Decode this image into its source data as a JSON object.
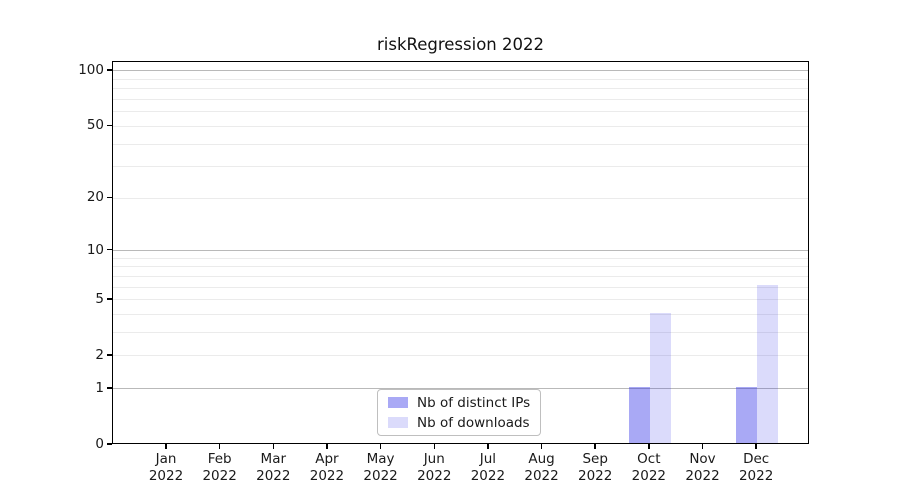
{
  "title": "riskRegression 2022",
  "legend": [
    {
      "label": "Nb of distinct IPs",
      "color": "rgba(40,40,230,0.40)"
    },
    {
      "label": "Nb of downloads",
      "color": "rgba(40,40,230,0.17)"
    }
  ],
  "chart_data": {
    "type": "bar",
    "title": "riskRegression 2022",
    "categories": [
      "Jan 2022",
      "Feb 2022",
      "Mar 2022",
      "Apr 2022",
      "May 2022",
      "Jun 2022",
      "Jul 2022",
      "Aug 2022",
      "Sep 2022",
      "Oct 2022",
      "Nov 2022",
      "Dec 2022"
    ],
    "series": [
      {
        "name": "Nb of distinct IPs",
        "color": "rgba(40,40,230,0.40)",
        "values": [
          0,
          0,
          0,
          0,
          0,
          0,
          0,
          0,
          0,
          1,
          0,
          1
        ]
      },
      {
        "name": "Nb of downloads",
        "color": "rgba(40,40,230,0.17)",
        "values": [
          0,
          0,
          0,
          0,
          0,
          0,
          0,
          0,
          0,
          4,
          0,
          6
        ]
      }
    ],
    "xlabel": "",
    "ylabel": "",
    "y_scale": "log1p",
    "ylim": [
      0,
      112
    ],
    "y_ticks": [
      0,
      1,
      2,
      5,
      10,
      20,
      50,
      100
    ],
    "y_gridlines_decade": [
      1,
      10,
      100
    ],
    "y_gridlines_minor": [
      2,
      3,
      4,
      5,
      6,
      7,
      8,
      9,
      20,
      30,
      40,
      50,
      60,
      70,
      80,
      90
    ],
    "grid": true,
    "legend_position": "lower center",
    "colors": {
      "bar_distinct_ips": "#a9a9f5",
      "bar_downloads": "#dcdcf8",
      "grid_decade": "#b9b9b9",
      "grid_minor": "#ebebeb",
      "axis": "#000000"
    }
  }
}
